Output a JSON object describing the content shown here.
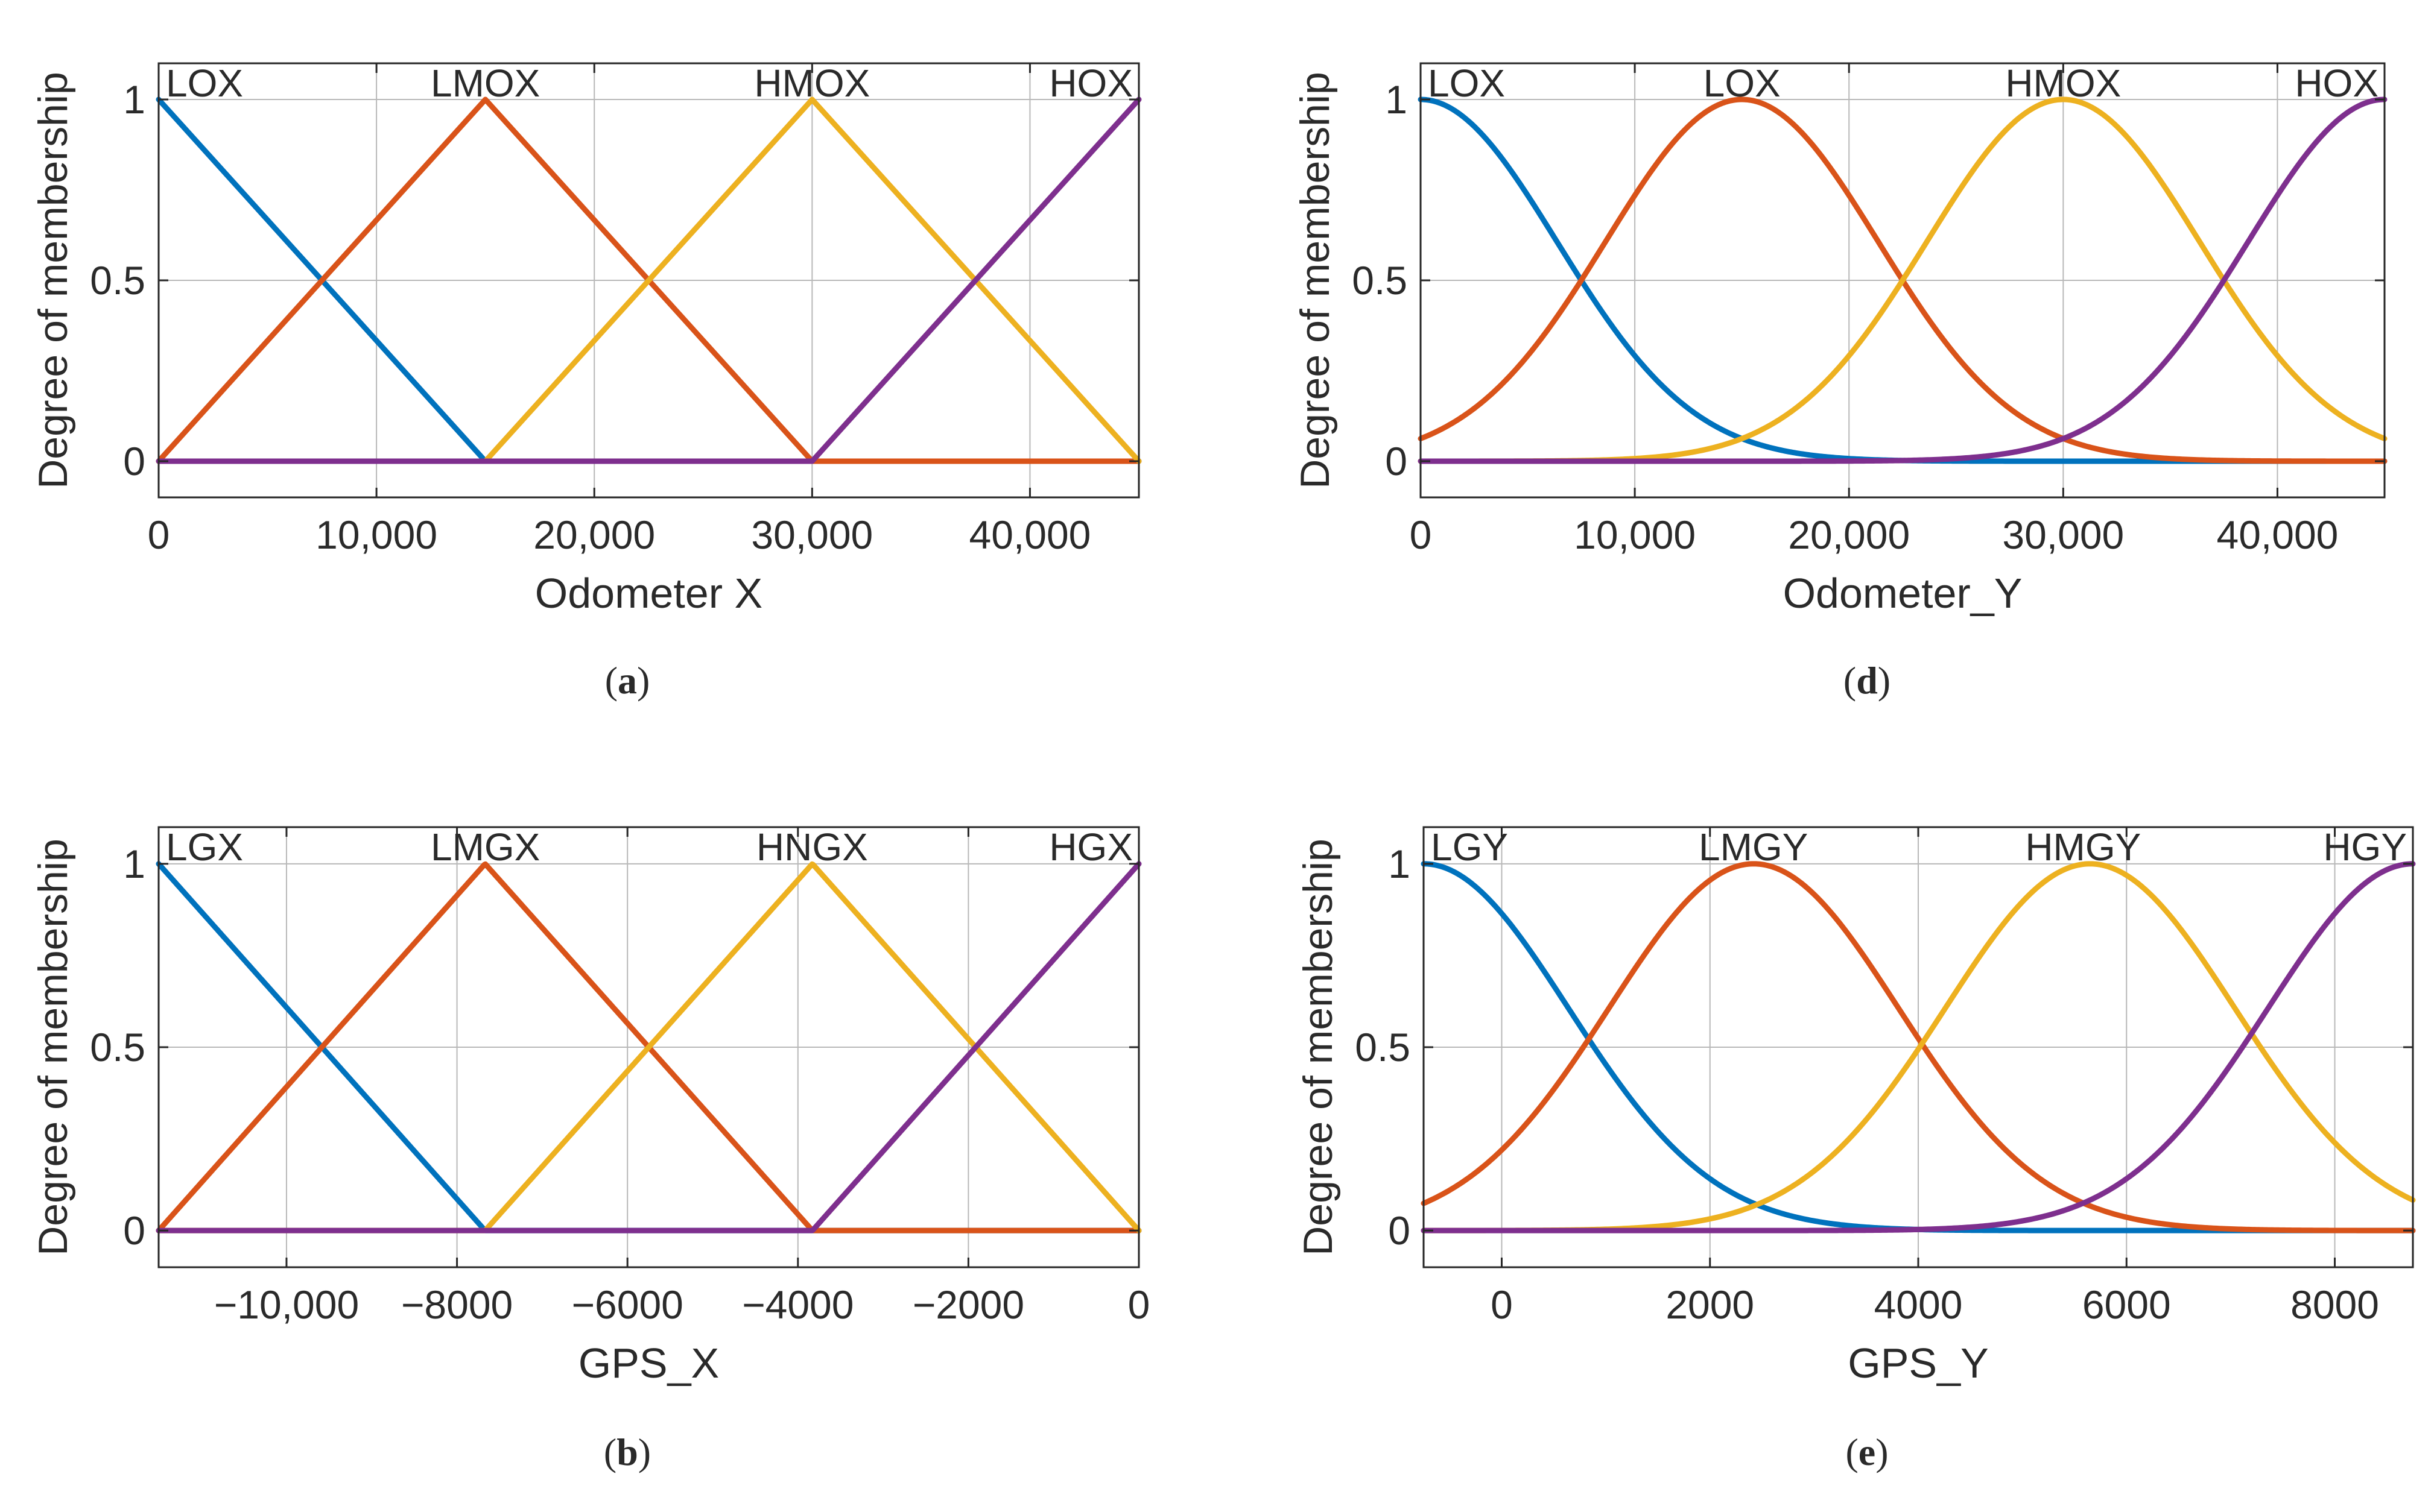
{
  "figure": {
    "y_axis_label": "Degree of membership",
    "y_ticks": [
      "0",
      "0.5",
      "1"
    ]
  },
  "colors": {
    "series": [
      "#0072BD",
      "#D95319",
      "#EDB120",
      "#7E2F8E"
    ],
    "grid": "#b8b8b8",
    "axes": "#262626"
  },
  "chart_data": [
    {
      "panel": "a",
      "type": "line",
      "caption": {
        "open": "(",
        "letter": "a",
        "close": ")"
      },
      "xlabel": "Odometer X",
      "ylabel": "Degree of membership",
      "xlim": [
        0,
        45000
      ],
      "ylim": [
        -0.1,
        1.1
      ],
      "xticks": [
        0,
        10000,
        20000,
        30000,
        40000
      ],
      "xtick_labels": [
        "0",
        "10,000",
        "20,000",
        "30,000",
        "40,000"
      ],
      "yticks": [
        0,
        0.5,
        1
      ],
      "ytick_labels": [
        "0",
        "0.5",
        "1"
      ],
      "grid": true,
      "series": [
        {
          "name": "LOX",
          "shape": "trimf",
          "params": [
            -15000,
            0,
            15000
          ]
        },
        {
          "name": "LMOX",
          "shape": "trimf",
          "params": [
            0,
            15000,
            30000
          ]
        },
        {
          "name": "HMOX",
          "shape": "trimf",
          "params": [
            15000,
            30000,
            45000
          ]
        },
        {
          "name": "HOX",
          "shape": "trimf",
          "params": [
            30000,
            45000,
            60000
          ]
        }
      ],
      "mf_labels": [
        "LOX",
        "LMOX",
        "HMOX",
        "HOX"
      ]
    },
    {
      "panel": "d",
      "type": "line",
      "caption": {
        "open": "(",
        "letter": "d",
        "close": ")"
      },
      "xlabel": "Odometer_Y",
      "ylabel": "Degree of membership",
      "xlim": [
        0,
        45000
      ],
      "ylim": [
        -0.1,
        1.1
      ],
      "xticks": [
        0,
        10000,
        20000,
        30000,
        40000
      ],
      "xtick_labels": [
        "0",
        "10,000",
        "20,000",
        "30,000",
        "40,000"
      ],
      "yticks": [
        0,
        0.5,
        1
      ],
      "ytick_labels": [
        "0",
        "0.5",
        "1"
      ],
      "grid": true,
      "series": [
        {
          "name": "LOX",
          "shape": "gaussmf",
          "params": [
            6370,
            0
          ]
        },
        {
          "name": "LOX",
          "shape": "gaussmf",
          "params": [
            6370,
            15000
          ]
        },
        {
          "name": "HMOX",
          "shape": "gaussmf",
          "params": [
            6370,
            30000
          ]
        },
        {
          "name": "HOX",
          "shape": "gaussmf",
          "params": [
            6370,
            45000
          ]
        }
      ],
      "mf_labels": [
        "LOX",
        "LOX",
        "HMOX",
        "HOX"
      ]
    },
    {
      "panel": "b",
      "type": "line",
      "caption": {
        "open": "(",
        "letter": "b",
        "close": ")"
      },
      "xlabel": "GPS_X",
      "ylabel": "Degree of membership",
      "xlim": [
        -11500,
        0
      ],
      "ylim": [
        -0.1,
        1.1
      ],
      "xticks": [
        -10000,
        -8000,
        -6000,
        -4000,
        -2000,
        0
      ],
      "xtick_labels": [
        "−10,000",
        "−8000",
        "−6000",
        "−4000",
        "−2000",
        "0"
      ],
      "yticks": [
        0,
        0.5,
        1
      ],
      "ytick_labels": [
        "0",
        "0.5",
        "1"
      ],
      "grid": true,
      "series": [
        {
          "name": "LGX",
          "shape": "trimf",
          "params": [
            -15330,
            -11500,
            -7670
          ]
        },
        {
          "name": "LMGX",
          "shape": "trimf",
          "params": [
            -11500,
            -7670,
            -3830
          ]
        },
        {
          "name": "HNGX",
          "shape": "trimf",
          "params": [
            -7670,
            -3830,
            0
          ]
        },
        {
          "name": "HGX",
          "shape": "trimf",
          "params": [
            -3830,
            0,
            3830
          ]
        }
      ],
      "mf_labels": [
        "LGX",
        "LMGX",
        "HNGX",
        "HGX"
      ]
    },
    {
      "panel": "e",
      "type": "line",
      "caption": {
        "open": "(",
        "letter": "e",
        "close": ")"
      },
      "xlabel": "GPS_Y",
      "ylabel": "Degree of membership",
      "xlim": [
        -750,
        8750
      ],
      "ylim": [
        -0.1,
        1.1
      ],
      "xticks": [
        0,
        2000,
        4000,
        6000,
        8000
      ],
      "xtick_labels": [
        "0",
        "2000",
        "4000",
        "6000",
        "8000"
      ],
      "yticks": [
        0,
        0.5,
        1
      ],
      "ytick_labels": [
        "0",
        "0.5",
        "1"
      ],
      "grid": true,
      "series": [
        {
          "name": "LGY",
          "shape": "gaussmf",
          "params": [
            1390,
            -750
          ]
        },
        {
          "name": "LMGY",
          "shape": "gaussmf",
          "params": [
            1390,
            2420
          ]
        },
        {
          "name": "HMGY",
          "shape": "gaussmf",
          "params": [
            1390,
            5650
          ]
        },
        {
          "name": "HGY",
          "shape": "gaussmf",
          "params": [
            1390,
            8750
          ]
        }
      ],
      "mf_labels": [
        "LGY",
        "LMGY",
        "HMGY",
        "HGY"
      ]
    }
  ]
}
